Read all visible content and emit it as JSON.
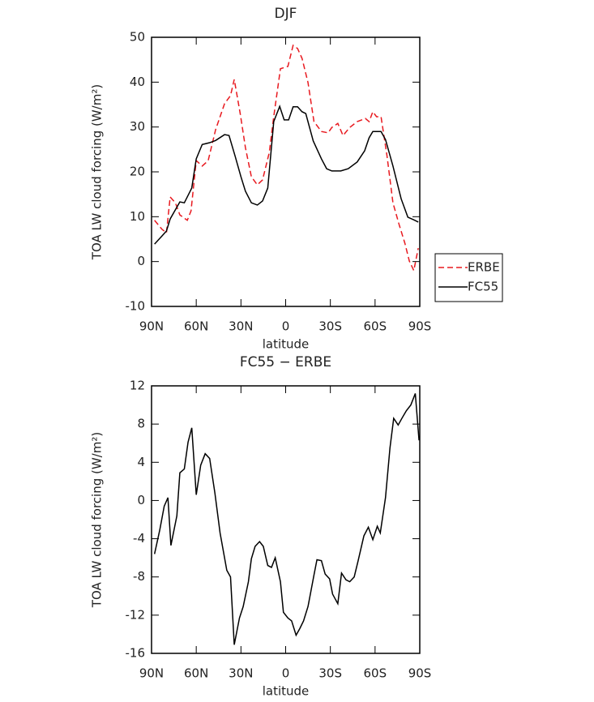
{
  "chart_data": [
    {
      "type": "line",
      "title": "DJF",
      "x_label": "latitude",
      "y_label": "TOA LW cloud forcing (W/m²)",
      "xlim": [
        90,
        -90
      ],
      "xticks": [
        {
          "value": 90,
          "label": "90N"
        },
        {
          "value": 60,
          "label": "60N"
        },
        {
          "value": 30,
          "label": "30N"
        },
        0,
        {
          "value": -30,
          "label": "30S"
        },
        {
          "value": -60,
          "label": "60S"
        },
        {
          "value": -90,
          "label": "90S"
        }
      ],
      "ylim": [
        -10,
        50
      ],
      "yticks": [
        -10,
        0,
        10,
        20,
        30,
        40,
        50
      ],
      "legend": "right",
      "series": [
        {
          "name": "ERBE",
          "color": "#e8191f",
          "dash": true,
          "x": [
            88,
            83,
            80,
            77.5,
            74,
            71,
            66,
            63.5,
            60,
            56,
            52,
            47,
            41,
            37,
            34.5,
            30.5,
            27,
            23,
            19,
            15.5,
            11,
            8,
            3.5,
            -1.5,
            -5,
            -8,
            -11,
            -15,
            -19,
            -24,
            -28.5,
            -31,
            -35,
            -38.5,
            -43,
            -48,
            -53.5,
            -56,
            -58.5,
            -61,
            -64,
            -68,
            -72,
            -76,
            -80,
            -83,
            -86,
            -89
          ],
          "values": [
            9.2,
            7.2,
            6.4,
            14.4,
            13.1,
            10.4,
            9.2,
            11.3,
            22.5,
            21.3,
            22.5,
            29.4,
            35.2,
            37,
            40.6,
            33,
            25.4,
            18.9,
            17.1,
            18.2,
            24.3,
            32.3,
            43,
            43.5,
            48.2,
            47.5,
            45.3,
            39.9,
            31.2,
            29,
            28.7,
            29.9,
            30.8,
            28.1,
            29.9,
            31.2,
            31.9,
            31.2,
            33.4,
            32.3,
            32.3,
            23.6,
            13.1,
            8.4,
            4.1,
            0.1,
            -2,
            3
          ]
        },
        {
          "name": "FC55",
          "color": "#000000",
          "dash": false,
          "x": [
            88,
            83,
            80,
            77.5,
            71,
            68,
            63,
            60,
            56,
            51,
            47,
            41,
            38,
            34,
            30,
            27,
            23,
            19,
            15.5,
            12,
            8,
            4,
            1,
            -2,
            -5,
            -8,
            -11,
            -13.5,
            -18.5,
            -24,
            -27.5,
            -31,
            -37,
            -42,
            -48,
            -53,
            -56,
            -58.5,
            -64,
            -67,
            -72,
            -77.5,
            -82,
            -86,
            -89
          ],
          "values": [
            3.9,
            5.7,
            6.8,
            9.5,
            13.3,
            13.1,
            16.4,
            22.9,
            26.1,
            26.5,
            27,
            28.3,
            28.1,
            23.6,
            18.9,
            15.7,
            13.1,
            12.6,
            13.5,
            16.4,
            31.2,
            34.6,
            31.6,
            31.6,
            34.5,
            34.5,
            33.4,
            33,
            26.9,
            22.9,
            20.7,
            20.2,
            20.2,
            20.7,
            22.2,
            24.7,
            27.6,
            29,
            29,
            27.2,
            21.3,
            14,
            9.9,
            9.3,
            8.8
          ]
        }
      ]
    },
    {
      "type": "line",
      "title": "FC55 − ERBE",
      "x_label": "latitude",
      "y_label": "TOA LW cloud forcing (W/m²)",
      "xlim": [
        90,
        -90
      ],
      "xticks": [
        {
          "value": 90,
          "label": "90N"
        },
        {
          "value": 60,
          "label": "60N"
        },
        {
          "value": 30,
          "label": "30N"
        },
        0,
        {
          "value": -30,
          "label": "30S"
        },
        {
          "value": -60,
          "label": "60S"
        },
        {
          "value": -90,
          "label": "90S"
        }
      ],
      "ylim": [
        -16,
        12
      ],
      "yticks": [
        -16,
        -12,
        -8,
        -4,
        0,
        4,
        8,
        12
      ],
      "series": [
        {
          "color": "#000000",
          "dash": false,
          "x": [
            88,
            84.5,
            81.5,
            79,
            77,
            73,
            71,
            68,
            65.5,
            63,
            60,
            57,
            54,
            51,
            47.5,
            44,
            39.5,
            37,
            34.5,
            31,
            28.5,
            25,
            23,
            20.5,
            17.5,
            15,
            12,
            9.5,
            7,
            3.5,
            1.5,
            -1.5,
            -4,
            -7,
            -9.5,
            -12,
            -15,
            -19,
            -21,
            -24,
            -26.5,
            -29.5,
            -31.5,
            -35,
            -37.5,
            -40.5,
            -43,
            -46,
            -48.5,
            -52.5,
            -55.5,
            -58.5,
            -61.5,
            -63.5,
            -67,
            -70,
            -72.5,
            -75.5,
            -78,
            -81,
            -84,
            -87,
            -89.5
          ],
          "values": [
            -5.6,
            -3.1,
            -0.6,
            0.3,
            -4.7,
            -1.6,
            2.9,
            3.3,
            6.1,
            7.6,
            0.6,
            3.7,
            4.9,
            4.4,
            0.8,
            -3.4,
            -7.3,
            -8,
            -15.1,
            -12.3,
            -11.1,
            -8.5,
            -6.1,
            -4.8,
            -4.3,
            -4.8,
            -6.8,
            -7,
            -6,
            -8.5,
            -11.7,
            -12.3,
            -12.6,
            -14.1,
            -13.4,
            -12.6,
            -11.1,
            -7.8,
            -6.2,
            -6.3,
            -7.7,
            -8.2,
            -9.8,
            -10.8,
            -7.6,
            -8.3,
            -8.5,
            -8,
            -6.4,
            -3.7,
            -2.8,
            -4.1,
            -2.7,
            -3.4,
            0.3,
            5.5,
            8.6,
            7.9,
            8.6,
            9.4,
            10,
            11.2,
            6.3
          ]
        }
      ]
    }
  ]
}
